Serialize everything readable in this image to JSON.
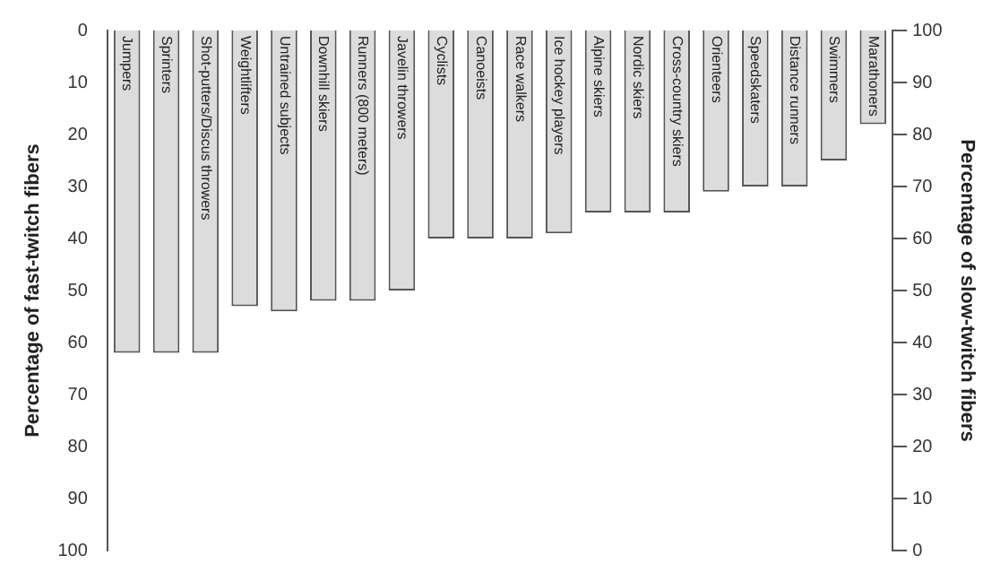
{
  "chart_data": {
    "type": "bar",
    "ylabel": "Percentage of fast-twitch fibers",
    "y2label": "Percentage of slow-twitch fibers",
    "categories": [
      "Jumpers",
      "Sprinters",
      "Shot-putters/Discus throwers",
      "Weightlifters",
      "Untrained subjects",
      "Downhill skiers",
      "Runners (800 meters)",
      "Javelin throwers",
      "Cyclists",
      "Canoeists",
      "Race walkers",
      "Ice hockey players",
      "Alpine skiers",
      "Nordic skiers",
      "Cross-country skiers",
      "Orienteers",
      "Speedskaters",
      "Distance runners",
      "Swimmers",
      "Marathoners"
    ],
    "values": [
      62,
      62,
      62,
      53,
      54,
      52,
      52,
      50,
      40,
      40,
      40,
      39,
      35,
      35,
      35,
      31,
      30,
      30,
      25,
      18
    ],
    "color": "#dcdcdc",
    "ylim": [
      100,
      0
    ],
    "yticks": [
      0,
      10,
      20,
      30,
      40,
      50,
      60,
      70,
      80,
      90,
      100
    ],
    "y2lim": [
      0,
      100
    ],
    "y2ticks": [
      0,
      10,
      20,
      30,
      40,
      50,
      60,
      70,
      80,
      90,
      100
    ],
    "grid": false,
    "legend": false
  }
}
